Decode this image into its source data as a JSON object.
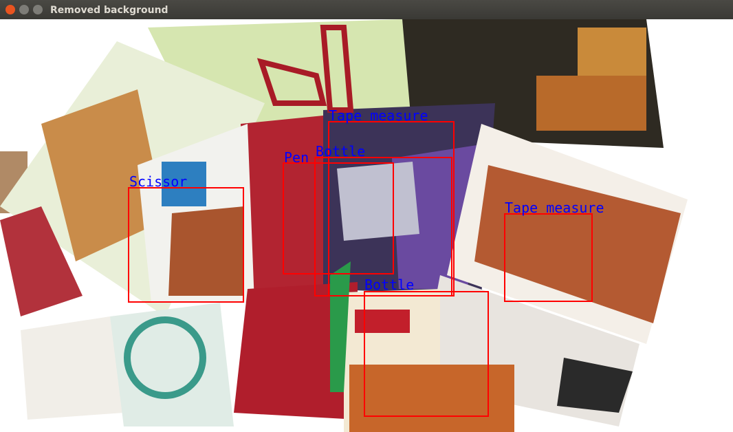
{
  "window": {
    "title": "Removed background"
  },
  "detections": [
    {
      "label": "Tape measure"
    },
    {
      "label": "Bottle"
    },
    {
      "label": "Pen"
    },
    {
      "label": "Scissor"
    },
    {
      "label": "Tape measure"
    },
    {
      "label": "Bottle"
    }
  ]
}
